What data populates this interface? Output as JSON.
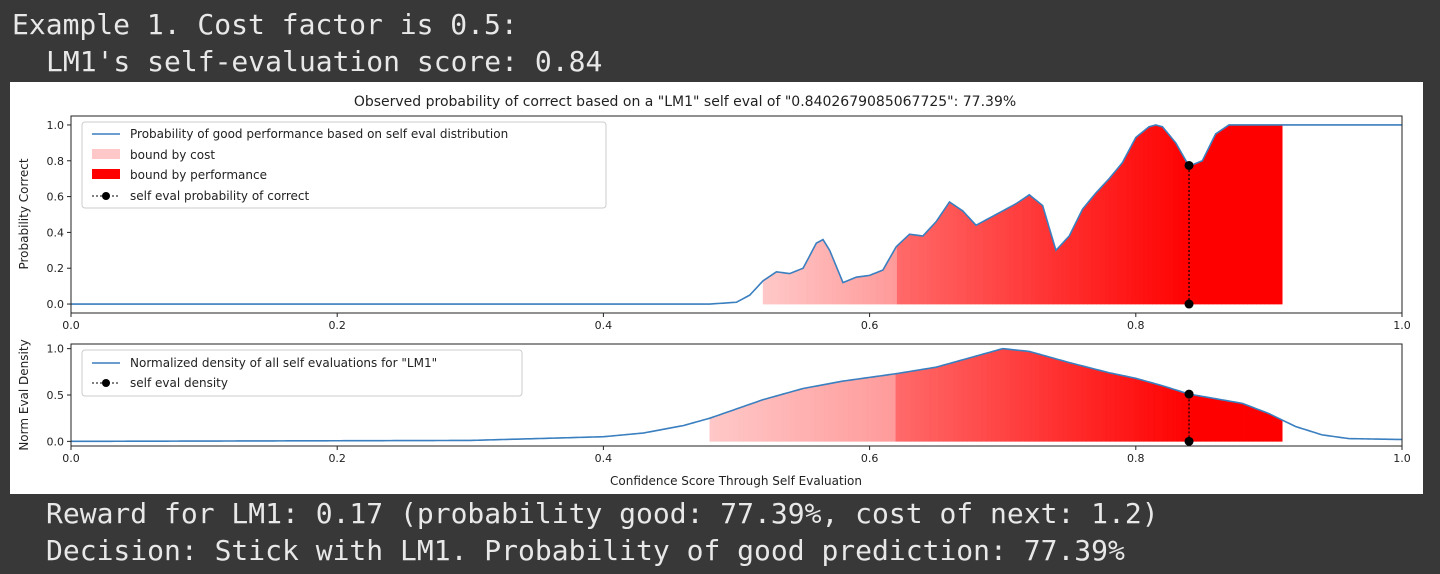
{
  "console": {
    "line1": "Example 1. Cost factor is 0.5:",
    "line2": "LM1's self-evaluation score: 0.84",
    "line3": "Reward for LM1: 0.17 (probability good: 77.39%, cost of next: 1.2)",
    "line4": "Decision: Stick with LM1. Probability of good prediction: 77.39%"
  },
  "chart_data": [
    {
      "type": "area",
      "title": "Observed probability of correct based on a \"LM1\" self eval of \"0.8402679085067725\": 77.39%",
      "xlabel": "",
      "ylabel": "Probability Correct",
      "xlim": [
        0.0,
        1.0
      ],
      "ylim": [
        -0.05,
        1.05
      ],
      "xticks": [
        "0.0",
        "0.2",
        "0.4",
        "0.6",
        "0.8",
        "1.0"
      ],
      "yticks": [
        "0.0",
        "0.2",
        "0.4",
        "0.6",
        "0.8",
        "1.0"
      ],
      "legend_placement": "upper-left",
      "legend": [
        "Probability of good performance based on self eval distribution",
        "bound by cost",
        "bound by performance",
        "self eval probability of correct"
      ],
      "curve": {
        "x": [
          0.0,
          0.48,
          0.5,
          0.51,
          0.52,
          0.53,
          0.54,
          0.55,
          0.56,
          0.565,
          0.57,
          0.58,
          0.59,
          0.6,
          0.61,
          0.62,
          0.63,
          0.64,
          0.65,
          0.66,
          0.67,
          0.68,
          0.69,
          0.7,
          0.71,
          0.72,
          0.73,
          0.74,
          0.75,
          0.76,
          0.77,
          0.78,
          0.79,
          0.8,
          0.81,
          0.815,
          0.82,
          0.83,
          0.84,
          0.85,
          0.86,
          0.87,
          0.88,
          0.9,
          0.92,
          1.0
        ],
        "y": [
          0.0,
          0.0,
          0.01,
          0.05,
          0.13,
          0.18,
          0.17,
          0.2,
          0.34,
          0.36,
          0.3,
          0.12,
          0.15,
          0.16,
          0.19,
          0.32,
          0.39,
          0.38,
          0.46,
          0.57,
          0.52,
          0.44,
          0.48,
          0.52,
          0.56,
          0.61,
          0.55,
          0.3,
          0.38,
          0.53,
          0.62,
          0.7,
          0.79,
          0.93,
          0.99,
          1.0,
          0.99,
          0.9,
          0.77,
          0.8,
          0.95,
          1.0,
          1.0,
          1.0,
          1.0,
          1.0
        ]
      },
      "fill_range": [
        0.52,
        0.91
      ],
      "bound_by_cost_range": [
        0.52,
        0.62
      ],
      "bound_by_performance_range": [
        0.62,
        0.91
      ],
      "self_eval": {
        "x": 0.84,
        "y": 0.7739
      },
      "colors": {
        "line": "#3a7fbf",
        "cost": "#ffc8c8",
        "performance": "#ff0000",
        "marker": "#000000"
      }
    },
    {
      "type": "area",
      "title": "",
      "xlabel": "Confidence Score Through Self Evaluation",
      "ylabel": "Norm Eval Density",
      "xlim": [
        0.0,
        1.0
      ],
      "ylim": [
        -0.05,
        1.05
      ],
      "xticks": [
        "0.0",
        "0.2",
        "0.4",
        "0.6",
        "0.8",
        "1.0"
      ],
      "yticks": [
        "0.0",
        "0.5",
        "1.0"
      ],
      "legend_placement": "upper-left",
      "legend": [
        "Normalized density of all self evaluations for \"LM1\"",
        "self eval density"
      ],
      "curve": {
        "x": [
          0.0,
          0.3,
          0.4,
          0.43,
          0.46,
          0.48,
          0.5,
          0.52,
          0.55,
          0.58,
          0.6,
          0.62,
          0.65,
          0.68,
          0.7,
          0.72,
          0.75,
          0.78,
          0.8,
          0.82,
          0.84,
          0.86,
          0.88,
          0.9,
          0.92,
          0.94,
          0.96,
          1.0
        ],
        "y": [
          0.0,
          0.01,
          0.05,
          0.09,
          0.17,
          0.25,
          0.35,
          0.45,
          0.57,
          0.65,
          0.69,
          0.73,
          0.8,
          0.92,
          1.0,
          0.97,
          0.85,
          0.74,
          0.68,
          0.6,
          0.51,
          0.46,
          0.41,
          0.3,
          0.16,
          0.07,
          0.03,
          0.02
        ]
      },
      "fill_range": [
        0.48,
        0.91
      ],
      "bound_by_cost_range": [
        0.48,
        0.62
      ],
      "bound_by_performance_range": [
        0.62,
        0.91
      ],
      "self_eval": {
        "x": 0.84,
        "y": 0.51
      },
      "colors": {
        "line": "#3a7fbf",
        "cost": "#ffc8c8",
        "performance": "#ff0000",
        "marker": "#000000"
      }
    }
  ]
}
